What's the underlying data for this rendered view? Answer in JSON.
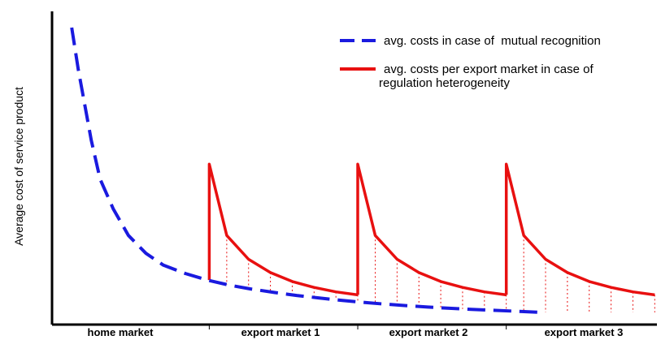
{
  "chart_data": {
    "type": "line",
    "title": "",
    "ylabel": "Average cost of service product",
    "xlabel": "",
    "x_ticks": [
      "home market",
      "export market 1",
      "export market 2",
      "export market 3"
    ],
    "legend": {
      "placement": "top-right",
      "entries": [
        {
          "name": "avg. costs in case of  mutual recognition",
          "style": "dashed",
          "color": "#1a1adf"
        },
        {
          "name": "avg. costs per export market in case of",
          "name_line2": "regulation heterogeneity",
          "style": "solid",
          "color": "#e81010"
        }
      ]
    },
    "colors": {
      "mutual": "#1a1adf",
      "heterogeneity": "#e81010",
      "axis": "#000000"
    },
    "series": [
      {
        "name": "avg. costs in case of  mutual recognition",
        "x": [
          0.45,
          0.6,
          0.9,
          1.1,
          1.4,
          1.75,
          2.15,
          2.55,
          3.05,
          3.55,
          4.05,
          4.55,
          5.1,
          5.6,
          6.1,
          6.6,
          7.1,
          7.6,
          8.1,
          8.6,
          9.1,
          9.6,
          10.1,
          10.6,
          11.2
        ],
        "y": [
          10.0,
          8.6,
          6.2,
          4.9,
          3.9,
          3.0,
          2.4,
          2.0,
          1.72,
          1.5,
          1.33,
          1.2,
          1.08,
          0.98,
          0.9,
          0.82,
          0.75,
          0.69,
          0.64,
          0.59,
          0.55,
          0.51,
          0.48,
          0.45,
          0.41
        ]
      },
      {
        "name": "avg. costs per export market in case of regulation heterogeneity",
        "segments": [
          {
            "x": [
              3.6,
              3.6,
              4.0,
              4.5,
              5.0,
              5.5,
              6.0,
              6.5,
              7.0
            ],
            "y": [
              1.5,
              5.4,
              3.0,
              2.2,
              1.75,
              1.45,
              1.25,
              1.1,
              1.0
            ]
          },
          {
            "x": [
              7.0,
              7.0,
              7.4,
              7.9,
              8.4,
              8.9,
              9.4,
              9.9,
              10.4
            ],
            "y": [
              1.0,
              5.4,
              3.0,
              2.2,
              1.75,
              1.45,
              1.25,
              1.1,
              1.0
            ]
          },
          {
            "x": [
              10.4,
              10.4,
              10.8,
              11.3,
              11.8,
              12.3,
              12.8,
              13.3,
              13.8
            ],
            "y": [
              1.0,
              5.4,
              3.0,
              2.2,
              1.75,
              1.45,
              1.25,
              1.1,
              1.0
            ]
          }
        ]
      }
    ],
    "xlim": [
      0,
      13.85
    ],
    "ylim": [
      0,
      10.6
    ],
    "grid": false
  }
}
